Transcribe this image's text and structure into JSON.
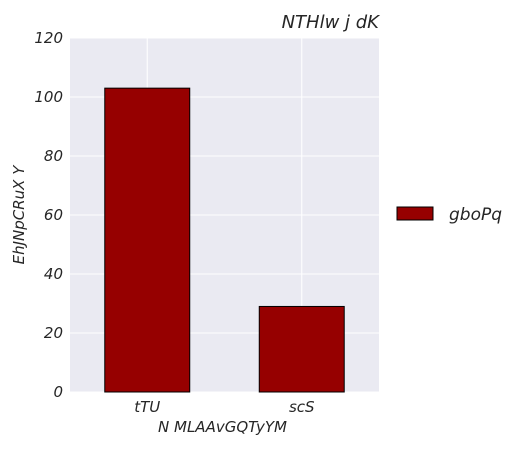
{
  "chart_data": {
    "type": "bar",
    "title": "NTHlw j dK",
    "xlabel": "N MLAAvGQTyYM",
    "ylabel": "EhJNpCRuX Y",
    "categories": [
      "tTU",
      "scS"
    ],
    "series": [
      {
        "name": "gboPq",
        "values": [
          103,
          29
        ],
        "color": "#960000"
      }
    ],
    "ylim": [
      0,
      120
    ],
    "yticks": [
      0,
      20,
      40,
      60,
      80,
      100,
      120
    ],
    "grid": true,
    "legend_position": "right",
    "colors": {
      "plot_background": "#EAEAF2",
      "grid": "#FFFFFF",
      "bar_edge": "#000000"
    }
  }
}
